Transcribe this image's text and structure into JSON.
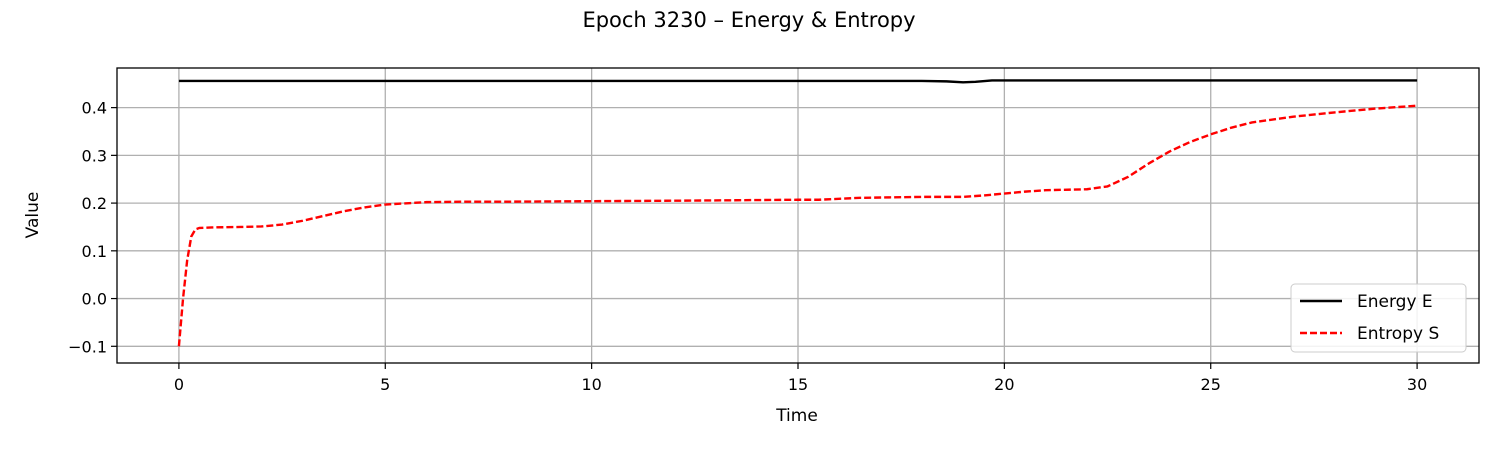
{
  "chart_data": {
    "type": "line",
    "title": "Epoch 3230 – Energy & Entropy",
    "xlabel": "Time",
    "ylabel": "Value",
    "xlim": [
      -1.5,
      31.5
    ],
    "ylim": [
      -0.135,
      0.483
    ],
    "xticks": [
      0,
      5,
      10,
      15,
      20,
      25,
      30
    ],
    "xtick_labels": [
      "0",
      "5",
      "10",
      "15",
      "20",
      "25",
      "30"
    ],
    "yticks": [
      -0.1,
      0.0,
      0.1,
      0.2,
      0.3,
      0.4
    ],
    "ytick_labels": [
      "−0.1",
      "0.0",
      "0.1",
      "0.2",
      "0.3",
      "0.4"
    ],
    "grid": true,
    "legend_position": "lower-right",
    "series": [
      {
        "name": "Energy E",
        "color": "#000000",
        "style": "solid",
        "x": [
          0,
          2,
          4,
          6,
          8,
          10,
          12,
          14,
          16,
          18,
          18.6,
          19.0,
          19.3,
          19.7,
          20.5,
          22,
          24,
          26,
          28,
          30
        ],
        "y": [
          0.456,
          0.456,
          0.456,
          0.456,
          0.456,
          0.456,
          0.456,
          0.456,
          0.456,
          0.456,
          0.455,
          0.453,
          0.454,
          0.457,
          0.457,
          0.457,
          0.457,
          0.457,
          0.457,
          0.457
        ]
      },
      {
        "name": "Entropy S",
        "color": "#ff0000",
        "style": "dashed",
        "x": [
          0,
          0.1,
          0.2,
          0.3,
          0.4,
          0.5,
          0.8,
          1.5,
          2.0,
          2.5,
          3.0,
          3.5,
          4.0,
          4.5,
          5.0,
          6.0,
          7.0,
          8.0,
          10.0,
          12.0,
          15.0,
          15.5,
          16.5,
          18.0,
          19.0,
          19.5,
          20.0,
          20.5,
          21.0,
          22.0,
          22.5,
          23.0,
          23.5,
          24.0,
          24.5,
          25.0,
          25.5,
          26.0,
          27.0,
          28.0,
          29.0,
          30.0
        ],
        "y": [
          -0.1,
          0.0,
          0.08,
          0.13,
          0.145,
          0.148,
          0.149,
          0.15,
          0.151,
          0.155,
          0.163,
          0.173,
          0.183,
          0.191,
          0.197,
          0.202,
          0.203,
          0.203,
          0.204,
          0.205,
          0.207,
          0.207,
          0.211,
          0.213,
          0.213,
          0.216,
          0.22,
          0.224,
          0.227,
          0.229,
          0.235,
          0.255,
          0.283,
          0.308,
          0.328,
          0.344,
          0.358,
          0.369,
          0.381,
          0.39,
          0.398,
          0.404
        ]
      }
    ]
  }
}
